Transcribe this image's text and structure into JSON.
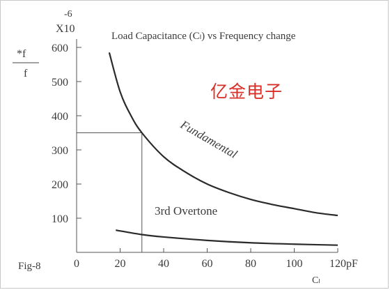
{
  "chart_data": {
    "type": "line",
    "title": "Load Capacitance (Cₗ) vs Frequency change",
    "figure_label": "Fig-8",
    "ylabel": {
      "numerator": "*f",
      "denominator": "f"
    },
    "yscale_label": "X10",
    "yscale_exponent": "-6",
    "xlabel": "Cₗ",
    "x_unit": "pF",
    "xlim": [
      0,
      120
    ],
    "ylim": [
      0,
      600
    ],
    "x_ticks": [
      0,
      20,
      40,
      60,
      80,
      100,
      120
    ],
    "x_tick_labels": [
      "0",
      "20",
      "40",
      "60",
      "80",
      "100",
      "120pF"
    ],
    "y_ticks": [
      100,
      200,
      300,
      400,
      500,
      600
    ],
    "grid": false,
    "series": [
      {
        "name": "Fundamental",
        "x": [
          15,
          20,
          25,
          30,
          40,
          50,
          60,
          70,
          80,
          90,
          100,
          110,
          120
        ],
        "y": [
          585,
          470,
          400,
          350,
          280,
          235,
          200,
          175,
          155,
          140,
          128,
          116,
          108
        ]
      },
      {
        "name": "3rd Overtone",
        "x": [
          18,
          30,
          40,
          60,
          80,
          100,
          120
        ],
        "y": [
          65,
          52,
          45,
          35,
          28,
          24,
          21
        ]
      }
    ],
    "reference": {
      "x": 30,
      "y": 350
    }
  },
  "watermark": "亿金电子"
}
